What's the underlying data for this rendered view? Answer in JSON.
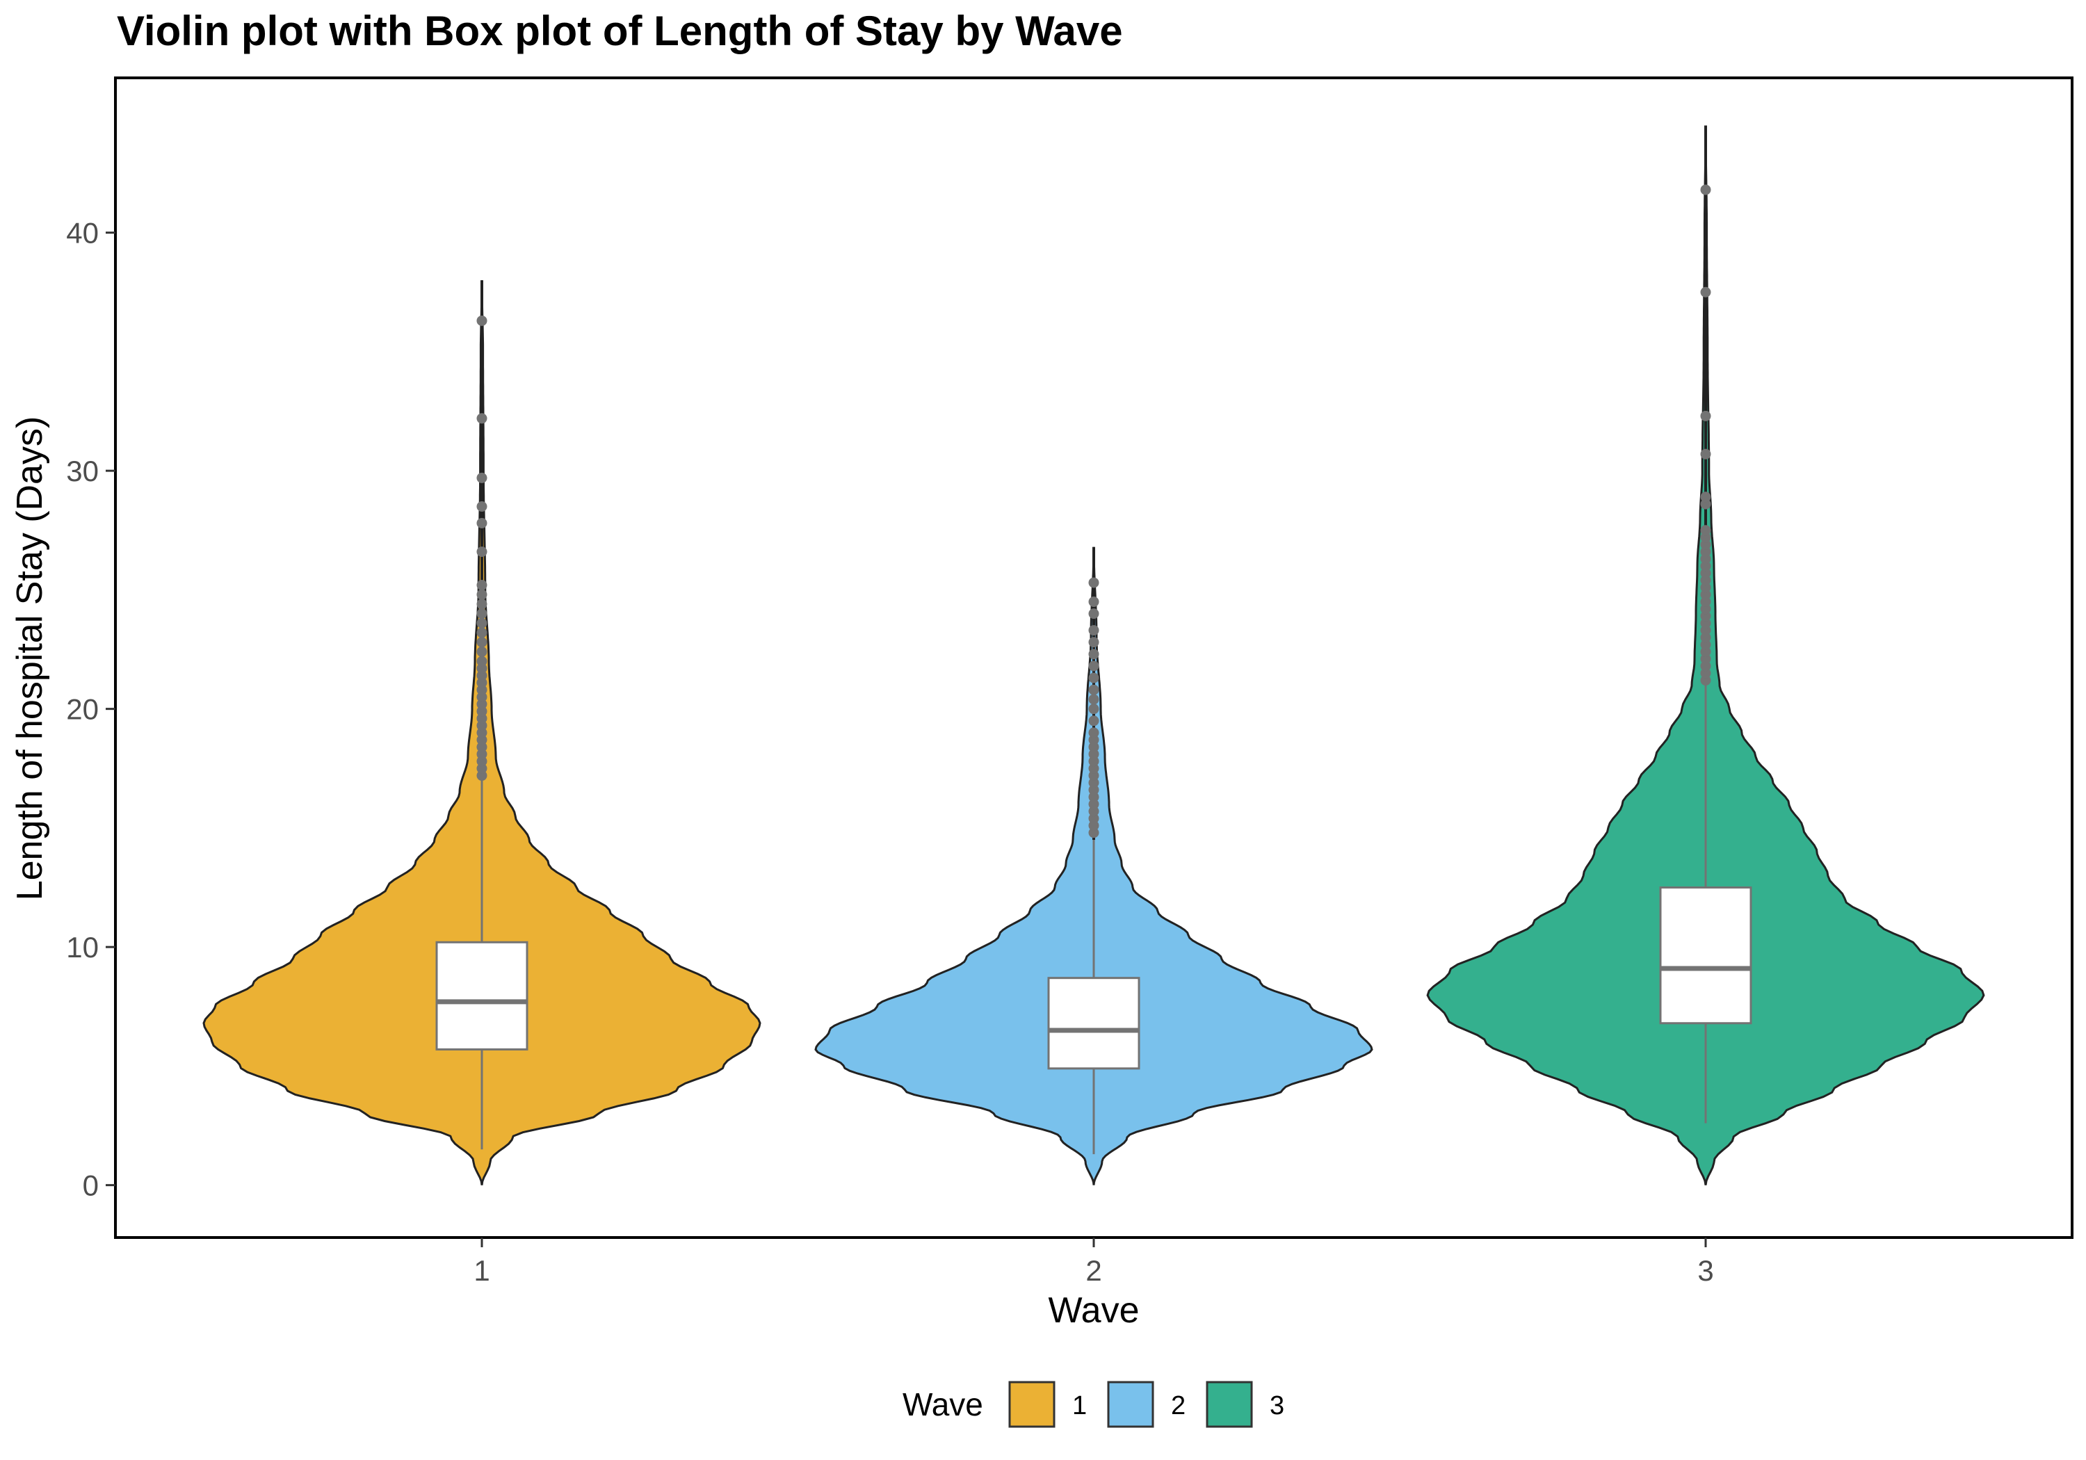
{
  "chart_data": {
    "type": "violin",
    "title": "Violin plot with Box plot of Length of Stay by Wave",
    "xlabel": "Wave",
    "ylabel": "Length of hospital Stay (Days)",
    "categories": [
      "1",
      "2",
      "3"
    ],
    "ylim": [
      -2.2,
      46.5
    ],
    "yticks": [
      0,
      10,
      20,
      30,
      40
    ],
    "grid": false,
    "legend": {
      "title": "Wave",
      "placement": "bottom",
      "entries": [
        "1",
        "2",
        "3"
      ]
    },
    "colors": {
      "1": "#EBB134",
      "2": "#79C1EC",
      "3": "#34B08E"
    },
    "box_color": "#737373",
    "violins": [
      {
        "category": "1",
        "y_min": 0,
        "y_max": 38,
        "density_profile": [
          [
            0,
            0
          ],
          [
            1,
            0.03
          ],
          [
            2,
            0.11
          ],
          [
            3,
            0.42
          ],
          [
            4,
            0.7
          ],
          [
            5,
            0.87
          ],
          [
            6,
            0.97
          ],
          [
            6.8,
            1.0
          ],
          [
            7.5,
            0.96
          ],
          [
            8.5,
            0.82
          ],
          [
            9.5,
            0.68
          ],
          [
            10.5,
            0.58
          ],
          [
            11.5,
            0.46
          ],
          [
            12.5,
            0.34
          ],
          [
            13.5,
            0.24
          ],
          [
            14.5,
            0.17
          ],
          [
            15.5,
            0.12
          ],
          [
            16.5,
            0.08
          ],
          [
            18,
            0.05
          ],
          [
            20,
            0.035
          ],
          [
            22,
            0.025
          ],
          [
            25,
            0.012
          ],
          [
            30,
            0.006
          ],
          [
            35,
            0.004
          ],
          [
            38,
            0
          ]
        ],
        "box": {
          "q1": 5.7,
          "median": 7.7,
          "q3": 10.2,
          "whisker_low": 1.5,
          "whisker_high": 17
        },
        "outliers": [
          17.2,
          17.5,
          17.8,
          18.1,
          18.4,
          18.7,
          19,
          19.3,
          19.6,
          19.9,
          20.2,
          20.5,
          20.8,
          21.1,
          21.4,
          21.7,
          22,
          22.4,
          22.8,
          23.2,
          23.6,
          24,
          24.4,
          24.8,
          25.2,
          26.6,
          27.8,
          28.5,
          29.7,
          32.2,
          36.3
        ]
      },
      {
        "category": "2",
        "y_min": 0,
        "y_max": 26.8,
        "density_profile": [
          [
            0,
            0
          ],
          [
            1,
            0.03
          ],
          [
            2,
            0.12
          ],
          [
            3,
            0.36
          ],
          [
            4,
            0.68
          ],
          [
            5,
            0.9
          ],
          [
            5.7,
            1.0
          ],
          [
            6.5,
            0.95
          ],
          [
            7.5,
            0.78
          ],
          [
            8.5,
            0.6
          ],
          [
            9.5,
            0.46
          ],
          [
            10.5,
            0.34
          ],
          [
            11.5,
            0.23
          ],
          [
            12.5,
            0.14
          ],
          [
            13.5,
            0.1
          ],
          [
            14.5,
            0.075
          ],
          [
            16,
            0.055
          ],
          [
            18,
            0.04
          ],
          [
            20,
            0.025
          ],
          [
            23,
            0.01
          ],
          [
            26.8,
            0
          ]
        ],
        "box": {
          "q1": 4.9,
          "median": 6.5,
          "q3": 8.7,
          "whisker_low": 1.3,
          "whisker_high": 14.5
        },
        "outliers": [
          14.8,
          15.1,
          15.4,
          15.7,
          16,
          16.3,
          16.6,
          16.9,
          17.2,
          17.5,
          17.8,
          18.1,
          18.4,
          18.7,
          19,
          19.5,
          20,
          20.4,
          20.8,
          21.3,
          21.8,
          22.3,
          22.8,
          23.3,
          24,
          24.5,
          25.3
        ]
      },
      {
        "category": "3",
        "y_min": 0,
        "y_max": 44.5,
        "density_profile": [
          [
            0,
            0
          ],
          [
            1,
            0.03
          ],
          [
            2,
            0.1
          ],
          [
            3,
            0.28
          ],
          [
            4,
            0.46
          ],
          [
            5,
            0.63
          ],
          [
            6,
            0.79
          ],
          [
            7,
            0.93
          ],
          [
            8,
            1.0
          ],
          [
            9,
            0.92
          ],
          [
            10,
            0.76
          ],
          [
            11,
            0.62
          ],
          [
            12,
            0.5
          ],
          [
            13,
            0.44
          ],
          [
            14,
            0.4
          ],
          [
            15,
            0.35
          ],
          [
            16,
            0.3
          ],
          [
            17,
            0.24
          ],
          [
            18,
            0.18
          ],
          [
            19,
            0.13
          ],
          [
            20,
            0.085
          ],
          [
            21,
            0.05
          ],
          [
            22,
            0.04
          ],
          [
            24,
            0.035
          ],
          [
            26,
            0.03
          ],
          [
            28,
            0.02
          ],
          [
            30,
            0.012
          ],
          [
            35,
            0.007
          ],
          [
            40,
            0.004
          ],
          [
            44.5,
            0
          ]
        ],
        "box": {
          "q1": 6.8,
          "median": 9.1,
          "q3": 12.5,
          "whisker_low": 2.6,
          "whisker_high": 21
        },
        "outliers": [
          21.2,
          21.5,
          21.8,
          22.1,
          22.4,
          22.7,
          23,
          23.3,
          23.6,
          23.9,
          24.2,
          24.5,
          24.8,
          25.1,
          25.4,
          25.7,
          26,
          26.3,
          26.6,
          26.9,
          27.2,
          27.5,
          28.6,
          28.9,
          30.7,
          32.3,
          37.5,
          41.8
        ]
      }
    ]
  }
}
